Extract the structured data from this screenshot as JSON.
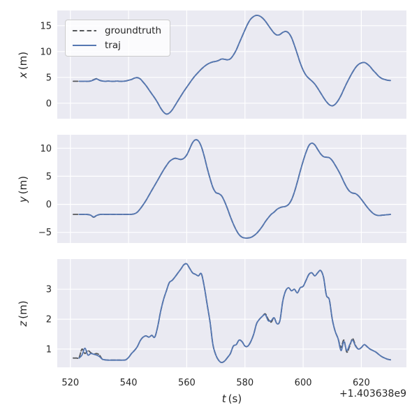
{
  "figure": {
    "background": "#ffffff",
    "axes_background": "#eaeaf2",
    "grid_color": "#ffffff",
    "text_color": "#262626"
  },
  "legend": {
    "position": "upper left",
    "entries": [
      {
        "label": "groundtruth",
        "color": "#55575a",
        "dash": true
      },
      {
        "label": "traj",
        "color": "#5577b2",
        "dash": false
      }
    ]
  },
  "chart_data": {
    "type": "line",
    "title": "",
    "grid": true,
    "xlabel_var": "t",
    "xlabel_unit": "(s)",
    "x_offset_text": "+1.403638e9",
    "xticks": [
      520,
      540,
      560,
      580,
      600,
      620
    ],
    "xlim": [
      515.5,
      635.5
    ],
    "t": [
      521,
      522,
      523,
      524,
      525,
      526,
      527,
      528,
      529,
      530,
      531,
      532,
      533,
      534,
      535,
      536,
      537,
      538,
      539,
      540,
      541,
      542,
      543,
      544,
      545,
      546,
      547,
      548,
      549,
      550,
      551,
      552,
      553,
      554,
      555,
      556,
      557,
      558,
      559,
      560,
      561,
      562,
      563,
      564,
      565,
      566,
      567,
      568,
      569,
      570,
      571,
      572,
      573,
      574,
      575,
      576,
      577,
      578,
      579,
      580,
      581,
      582,
      583,
      584,
      585,
      586,
      587,
      588,
      589,
      590,
      591,
      592,
      593,
      594,
      595,
      596,
      597,
      598,
      599,
      600,
      601,
      602,
      603,
      604,
      605,
      606,
      607,
      608,
      609,
      610,
      611,
      612,
      613,
      614,
      615,
      616,
      617,
      618,
      619,
      620,
      621,
      622,
      623,
      624,
      625,
      626,
      627,
      628,
      629,
      630
    ],
    "subplots": [
      {
        "ylabel_var": "x",
        "ylabel_unit": "(m)",
        "yticks": [
          0,
          5,
          10,
          15
        ],
        "ylim": [
          -3.0,
          17.95
        ],
        "series": {
          "groundtruth": [
            4.25,
            4.25,
            4.25,
            4.25,
            4.25,
            4.25,
            4.3,
            4.55,
            4.75,
            4.45,
            4.3,
            4.25,
            4.28,
            4.25,
            4.25,
            4.28,
            4.25,
            4.25,
            4.3,
            4.45,
            4.6,
            4.85,
            4.95,
            4.7,
            4.1,
            3.4,
            2.6,
            1.8,
            1.0,
            0.1,
            -0.9,
            -1.7,
            -2.1,
            -1.9,
            -1.3,
            -0.4,
            0.5,
            1.4,
            2.3,
            3.1,
            3.9,
            4.7,
            5.4,
            6.0,
            6.6,
            7.1,
            7.5,
            7.8,
            8.0,
            8.1,
            8.3,
            8.55,
            8.5,
            8.4,
            8.6,
            9.3,
            10.3,
            11.6,
            12.9,
            14.2,
            15.4,
            16.3,
            16.8,
            17.0,
            16.9,
            16.5,
            15.9,
            15.1,
            14.3,
            13.6,
            13.2,
            13.3,
            13.7,
            13.9,
            13.6,
            12.7,
            11.2,
            9.5,
            7.8,
            6.4,
            5.4,
            4.8,
            4.3,
            3.7,
            2.9,
            2.0,
            1.1,
            0.3,
            -0.3,
            -0.5,
            -0.2,
            0.5,
            1.5,
            2.7,
            3.9,
            5.0,
            6.0,
            6.9,
            7.5,
            7.8,
            7.9,
            7.6,
            7.1,
            6.4,
            5.8,
            5.2,
            4.8,
            4.6,
            4.45,
            4.4
          ],
          "traj": [
            null,
            null,
            4.25,
            4.25,
            4.25,
            4.25,
            4.3,
            4.5,
            4.7,
            4.45,
            4.3,
            4.25,
            4.28,
            4.25,
            4.25,
            4.28,
            4.25,
            4.25,
            4.3,
            4.45,
            4.6,
            4.85,
            4.95,
            4.7,
            4.1,
            3.4,
            2.6,
            1.8,
            1.0,
            0.1,
            -0.9,
            -1.7,
            -2.1,
            -1.9,
            -1.3,
            -0.4,
            0.5,
            1.4,
            2.3,
            3.1,
            3.9,
            4.7,
            5.4,
            6.0,
            6.6,
            7.1,
            7.5,
            7.8,
            8.0,
            8.1,
            8.3,
            8.55,
            8.5,
            8.4,
            8.6,
            9.3,
            10.3,
            11.6,
            12.9,
            14.2,
            15.4,
            16.3,
            16.8,
            17.0,
            16.9,
            16.5,
            15.9,
            15.1,
            14.3,
            13.6,
            13.2,
            13.3,
            13.7,
            13.9,
            13.6,
            12.7,
            11.2,
            9.5,
            7.8,
            6.4,
            5.4,
            4.8,
            4.3,
            3.7,
            2.9,
            2.0,
            1.1,
            0.3,
            -0.3,
            -0.5,
            -0.2,
            0.5,
            1.5,
            2.7,
            3.9,
            5.0,
            6.0,
            6.9,
            7.5,
            7.8,
            7.9,
            7.6,
            7.1,
            6.4,
            5.8,
            5.2,
            4.8,
            4.6,
            4.45,
            4.4
          ]
        }
      },
      {
        "ylabel_var": "y",
        "ylabel_unit": "(m)",
        "yticks": [
          -5,
          0,
          5,
          10
        ],
        "ylim": [
          -6.9,
          12.4
        ],
        "series": {
          "groundtruth": [
            -1.8,
            -1.8,
            -1.8,
            -1.8,
            -1.8,
            -1.82,
            -1.95,
            -2.3,
            -2.0,
            -1.82,
            -1.78,
            -1.8,
            -1.8,
            -1.78,
            -1.8,
            -1.8,
            -1.8,
            -1.8,
            -1.8,
            -1.8,
            -1.78,
            -1.7,
            -1.4,
            -0.8,
            -0.1,
            0.7,
            1.6,
            2.5,
            3.4,
            4.3,
            5.2,
            6.1,
            6.9,
            7.6,
            8.0,
            8.2,
            8.1,
            8.0,
            8.2,
            8.8,
            9.9,
            11.0,
            11.5,
            11.3,
            10.3,
            8.6,
            6.5,
            4.6,
            3.0,
            2.1,
            1.9,
            1.5,
            0.5,
            -0.8,
            -2.2,
            -3.5,
            -4.6,
            -5.4,
            -5.85,
            -6.0,
            -6.0,
            -5.9,
            -5.6,
            -5.2,
            -4.6,
            -3.9,
            -3.1,
            -2.4,
            -1.8,
            -1.4,
            -0.9,
            -0.6,
            -0.45,
            -0.35,
            0.0,
            0.8,
            2.2,
            4.0,
            5.9,
            7.7,
            9.3,
            10.5,
            10.9,
            10.6,
            9.8,
            9.0,
            8.5,
            8.4,
            8.3,
            7.8,
            7.0,
            6.1,
            5.1,
            4.0,
            3.0,
            2.3,
            2.0,
            1.9,
            1.5,
            0.9,
            0.2,
            -0.5,
            -1.1,
            -1.6,
            -1.9,
            -2.0,
            -1.95,
            -1.9,
            -1.85,
            -1.8
          ],
          "traj": [
            null,
            null,
            -1.8,
            -1.8,
            -1.8,
            -1.82,
            -1.95,
            -2.25,
            -2.0,
            -1.82,
            -1.78,
            -1.8,
            -1.8,
            -1.78,
            -1.8,
            -1.8,
            -1.8,
            -1.8,
            -1.8,
            -1.8,
            -1.78,
            -1.7,
            -1.4,
            -0.8,
            -0.1,
            0.7,
            1.6,
            2.5,
            3.4,
            4.3,
            5.2,
            6.1,
            6.9,
            7.6,
            8.0,
            8.2,
            8.1,
            8.0,
            8.2,
            8.8,
            9.9,
            11.0,
            11.5,
            11.3,
            10.3,
            8.6,
            6.5,
            4.6,
            3.0,
            2.1,
            1.9,
            1.5,
            0.5,
            -0.8,
            -2.2,
            -3.5,
            -4.6,
            -5.4,
            -5.85,
            -6.0,
            -6.0,
            -5.9,
            -5.6,
            -5.2,
            -4.6,
            -3.9,
            -3.1,
            -2.4,
            -1.8,
            -1.4,
            -0.9,
            -0.6,
            -0.45,
            -0.35,
            0.0,
            0.8,
            2.2,
            4.0,
            5.9,
            7.7,
            9.3,
            10.5,
            10.9,
            10.6,
            9.8,
            9.0,
            8.5,
            8.4,
            8.3,
            7.8,
            7.0,
            6.1,
            5.1,
            4.0,
            3.0,
            2.3,
            2.0,
            1.9,
            1.5,
            0.9,
            0.2,
            -0.5,
            -1.1,
            -1.6,
            -1.9,
            -2.0,
            -1.95,
            -1.9,
            -1.85,
            -1.8
          ]
        }
      },
      {
        "ylabel_var": "z",
        "ylabel_unit": "(m)",
        "yticks": [
          1,
          2,
          3
        ],
        "ylim": [
          0.39,
          4.01
        ],
        "series": {
          "groundtruth": [
            0.7,
            0.7,
            0.72,
            1.0,
            0.85,
            0.95,
            0.88,
            0.83,
            0.85,
            0.8,
            0.66,
            0.64,
            0.63,
            0.63,
            0.63,
            0.63,
            0.63,
            0.63,
            0.64,
            0.72,
            0.85,
            0.95,
            1.08,
            1.28,
            1.4,
            1.44,
            1.4,
            1.46,
            1.4,
            1.75,
            2.25,
            2.65,
            2.95,
            3.22,
            3.3,
            3.42,
            3.55,
            3.68,
            3.82,
            3.85,
            3.7,
            3.55,
            3.5,
            3.45,
            3.52,
            3.1,
            2.5,
            1.9,
            1.15,
            0.8,
            0.62,
            0.55,
            0.6,
            0.72,
            0.85,
            1.1,
            1.15,
            1.3,
            1.25,
            1.1,
            1.1,
            1.25,
            1.5,
            1.85,
            2.0,
            2.1,
            2.18,
            2.0,
            1.9,
            2.05,
            1.85,
            1.95,
            2.6,
            2.95,
            3.05,
            2.95,
            3.0,
            2.88,
            3.05,
            3.1,
            3.3,
            3.5,
            3.55,
            3.45,
            3.55,
            3.63,
            3.4,
            2.8,
            2.65,
            2.0,
            1.6,
            1.35,
            1.05,
            1.3,
            0.9,
            1.1,
            1.35,
            1.12,
            1.0,
            1.05,
            1.15,
            1.08,
            1.0,
            0.95,
            0.9,
            0.82,
            0.75,
            0.7,
            0.66,
            0.64
          ],
          "traj": [
            null,
            null,
            0.7,
            0.8,
            1.03,
            0.8,
            0.85,
            0.83,
            0.8,
            0.75,
            0.66,
            0.64,
            0.63,
            0.63,
            0.63,
            0.63,
            0.63,
            0.63,
            0.64,
            0.72,
            0.85,
            0.95,
            1.08,
            1.28,
            1.4,
            1.44,
            1.4,
            1.46,
            1.4,
            1.75,
            2.25,
            2.65,
            2.95,
            3.22,
            3.3,
            3.42,
            3.55,
            3.68,
            3.82,
            3.85,
            3.7,
            3.55,
            3.5,
            3.45,
            3.52,
            3.1,
            2.5,
            1.9,
            1.15,
            0.8,
            0.62,
            0.55,
            0.6,
            0.72,
            0.85,
            1.1,
            1.15,
            1.3,
            1.25,
            1.1,
            1.1,
            1.25,
            1.5,
            1.85,
            2.0,
            2.1,
            2.15,
            1.95,
            1.95,
            2.05,
            1.85,
            1.95,
            2.6,
            2.95,
            3.05,
            2.95,
            3.0,
            2.88,
            3.05,
            3.1,
            3.3,
            3.5,
            3.55,
            3.45,
            3.55,
            3.63,
            3.4,
            2.8,
            2.65,
            2.0,
            1.6,
            1.35,
            0.95,
            1.25,
            0.95,
            1.15,
            1.3,
            1.1,
            1.0,
            1.05,
            1.15,
            1.08,
            1.0,
            0.95,
            0.9,
            0.82,
            0.75,
            0.7,
            0.66,
            0.64
          ]
        }
      }
    ]
  }
}
